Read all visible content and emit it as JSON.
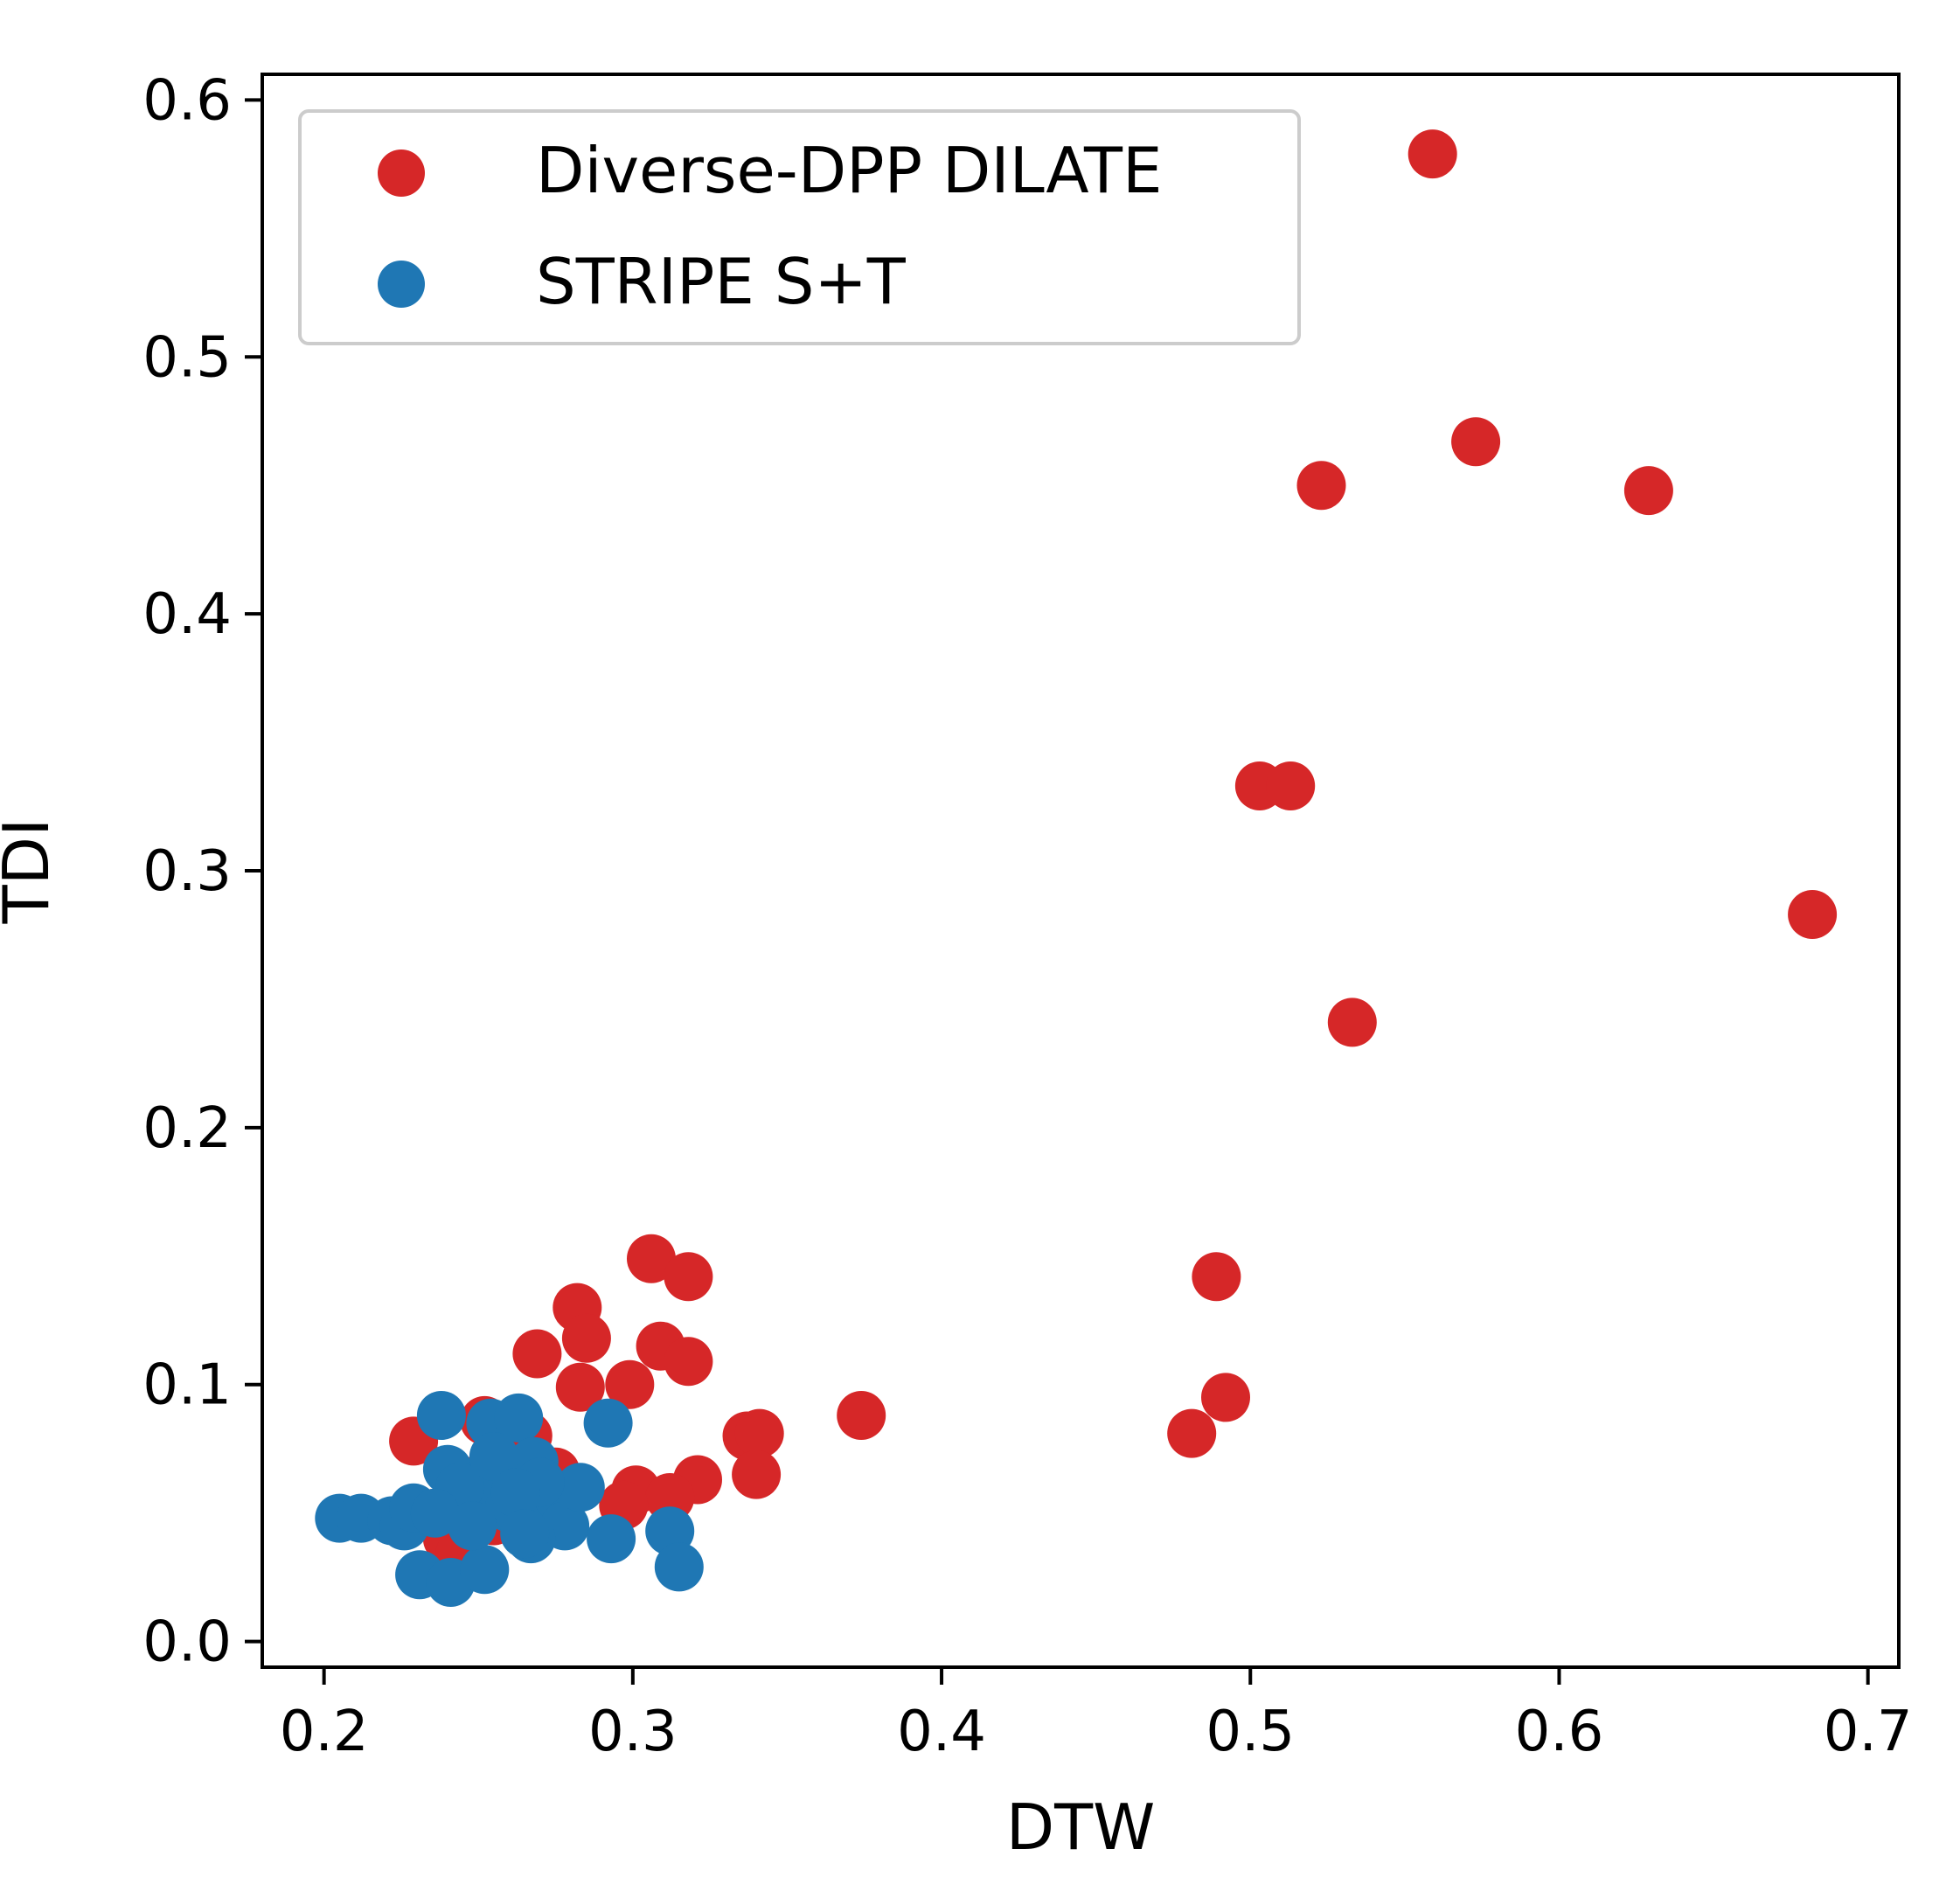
{
  "chart_data": {
    "type": "scatter",
    "xlabel": "DTW",
    "ylabel": "TDI",
    "xlim": [
      0.18,
      0.71
    ],
    "ylim": [
      -0.01,
      0.61
    ],
    "xticks": [
      0.2,
      0.3,
      0.4,
      0.5,
      0.6,
      0.7
    ],
    "xtick_labels": [
      "0.2",
      "0.3",
      "0.4",
      "0.5",
      "0.6",
      "0.7"
    ],
    "yticks": [
      0.0,
      0.1,
      0.2,
      0.3,
      0.4,
      0.5,
      0.6
    ],
    "ytick_labels": [
      "0.0",
      "0.1",
      "0.2",
      "0.3",
      "0.4",
      "0.5",
      "0.6"
    ],
    "grid": false,
    "legend": {
      "position": "top-left"
    },
    "series": [
      {
        "name": "Diverse-DPP DILATE",
        "color": "#d62728",
        "x": [
          0.559,
          0.573,
          0.523,
          0.629,
          0.503,
          0.513,
          0.682,
          0.533,
          0.489,
          0.492,
          0.481,
          0.374,
          0.306,
          0.318,
          0.282,
          0.285,
          0.269,
          0.309,
          0.318,
          0.283,
          0.299,
          0.337,
          0.341,
          0.34,
          0.321,
          0.301,
          0.312,
          0.297,
          0.229,
          0.252,
          0.262,
          0.266,
          0.25,
          0.275,
          0.24,
          0.244,
          0.255,
          0.27,
          0.258,
          0.236
        ],
        "y": [
          0.579,
          0.467,
          0.45,
          0.448,
          0.333,
          0.333,
          0.283,
          0.241,
          0.142,
          0.095,
          0.081,
          0.088,
          0.149,
          0.142,
          0.13,
          0.118,
          0.112,
          0.115,
          0.109,
          0.099,
          0.1,
          0.08,
          0.081,
          0.065,
          0.063,
          0.059,
          0.056,
          0.053,
          0.078,
          0.086,
          0.082,
          0.08,
          0.063,
          0.066,
          0.04,
          0.034,
          0.047,
          0.055,
          0.06,
          0.05
        ]
      },
      {
        "name": "STRIPE S+T",
        "color": "#1f77b4",
        "x": [
          0.205,
          0.212,
          0.222,
          0.226,
          0.229,
          0.238,
          0.24,
          0.247,
          0.251,
          0.254,
          0.258,
          0.263,
          0.266,
          0.268,
          0.272,
          0.276,
          0.278,
          0.283,
          0.292,
          0.293,
          0.312,
          0.315,
          0.231,
          0.241,
          0.252,
          0.267,
          0.244,
          0.255,
          0.26,
          0.27,
          0.236,
          0.248,
          0.262,
          0.265
        ],
        "y": [
          0.048,
          0.048,
          0.047,
          0.045,
          0.052,
          0.088,
          0.067,
          0.054,
          0.057,
          0.085,
          0.063,
          0.087,
          0.045,
          0.07,
          0.052,
          0.056,
          0.045,
          0.06,
          0.085,
          0.04,
          0.043,
          0.029,
          0.026,
          0.023,
          0.028,
          0.04,
          0.06,
          0.072,
          0.052,
          0.062,
          0.05,
          0.045,
          0.058,
          0.042
        ]
      }
    ]
  }
}
